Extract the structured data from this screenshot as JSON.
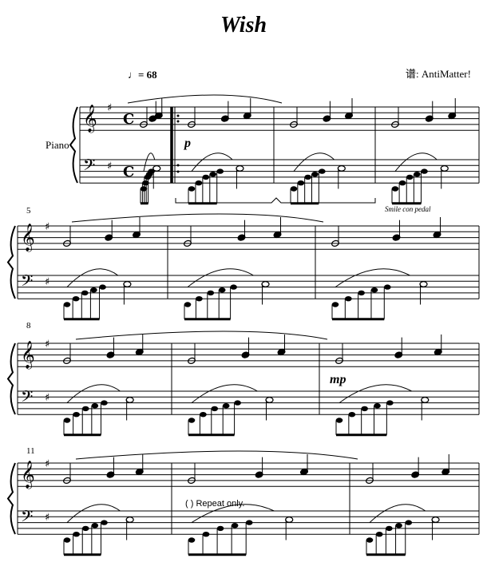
{
  "title": "Wish",
  "tempo": {
    "symbol": "♩",
    "text": "= 68"
  },
  "composer": "谱: AntiMatter!",
  "instrument": "Piano",
  "measure_numbers": [
    "5",
    "8",
    "11"
  ],
  "dynamics": {
    "p": "p",
    "mp": "mp"
  },
  "expression": "Smile con pedal",
  "repeat_note": "( ) Repeat only.",
  "key_signature": "G major (1 sharp)",
  "time_signature": "C"
}
